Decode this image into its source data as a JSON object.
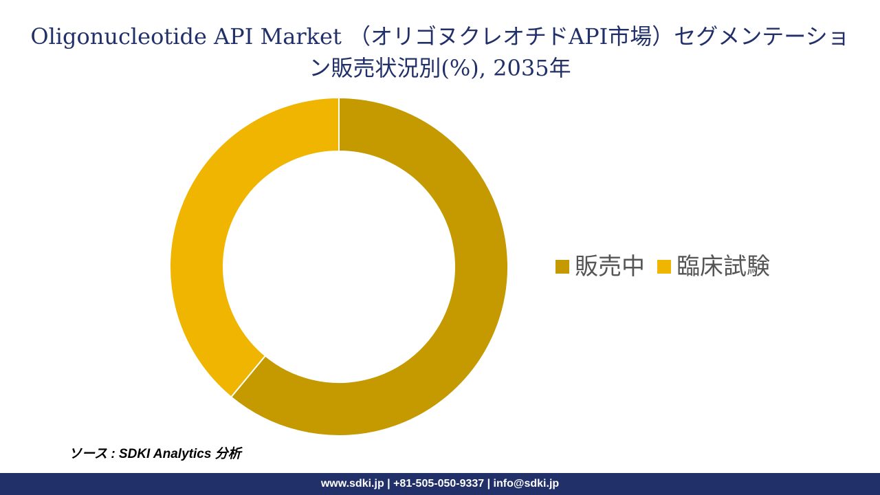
{
  "chart_data": {
    "type": "pie",
    "style": "donut",
    "title": "Oligonucleotide API Market （オリゴヌクレオチドAPI市場）セグメンテーション販売状況別(%), 2035年",
    "categories": [
      "販売中",
      "臨床試験"
    ],
    "values": [
      61,
      39
    ],
    "unit": "%",
    "colors": [
      "#c49a00",
      "#efb500"
    ],
    "legend_position": "right"
  },
  "source_label": "ソース : SDKI Analytics 分析",
  "footer_text": "www.sdki.jp | +81-505-050-9337 | info@sdki.jp"
}
